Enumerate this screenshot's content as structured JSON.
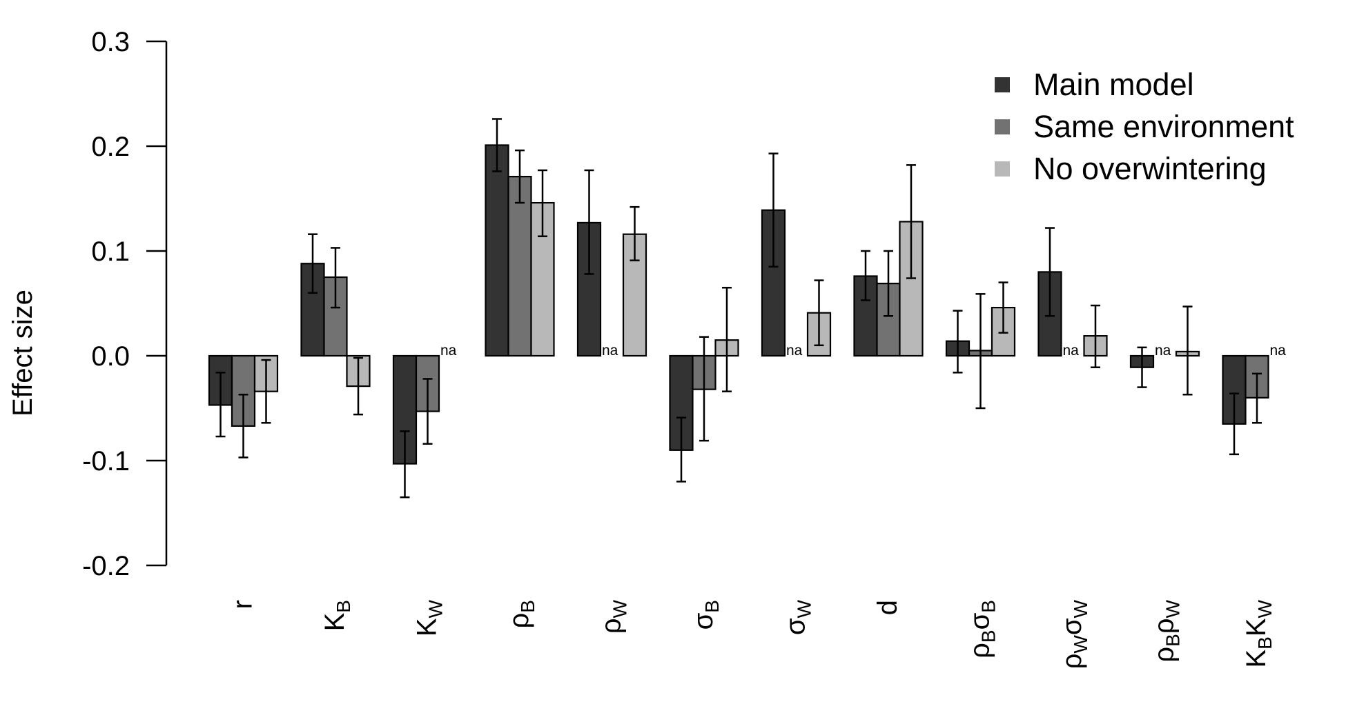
{
  "chart_data": {
    "type": "bar",
    "ylabel": "Effect size",
    "xlabel": "",
    "ylim": [
      -0.2,
      0.3
    ],
    "yticks": [
      "-0.2",
      "-0.1",
      "0.0",
      "0.1",
      "0.2",
      "0.3"
    ],
    "legend_position": "top-right",
    "na_label": "na",
    "categories": [
      {
        "parts": [
          {
            "t": "r"
          }
        ]
      },
      {
        "parts": [
          {
            "t": "K"
          },
          {
            "t": "B",
            "sub": true
          }
        ]
      },
      {
        "parts": [
          {
            "t": "K"
          },
          {
            "t": "W",
            "sub": true
          }
        ]
      },
      {
        "parts": [
          {
            "t": "ρ"
          },
          {
            "t": "B",
            "sub": true
          }
        ]
      },
      {
        "parts": [
          {
            "t": "ρ"
          },
          {
            "t": "W",
            "sub": true
          }
        ]
      },
      {
        "parts": [
          {
            "t": "σ"
          },
          {
            "t": "B",
            "sub": true
          }
        ]
      },
      {
        "parts": [
          {
            "t": "σ"
          },
          {
            "t": "W",
            "sub": true
          }
        ]
      },
      {
        "parts": [
          {
            "t": "d"
          }
        ]
      },
      {
        "parts": [
          {
            "t": "ρ"
          },
          {
            "t": "B",
            "sub": true
          },
          {
            "t": "σ"
          },
          {
            "t": "B",
            "sub": true
          }
        ]
      },
      {
        "parts": [
          {
            "t": "ρ"
          },
          {
            "t": "W",
            "sub": true
          },
          {
            "t": "σ"
          },
          {
            "t": "W",
            "sub": true
          }
        ]
      },
      {
        "parts": [
          {
            "t": "ρ"
          },
          {
            "t": "B",
            "sub": true
          },
          {
            "t": "ρ"
          },
          {
            "t": "W",
            "sub": true
          }
        ]
      },
      {
        "parts": [
          {
            "t": "K"
          },
          {
            "t": "B",
            "sub": true
          },
          {
            "t": "K"
          },
          {
            "t": "W",
            "sub": true
          }
        ]
      }
    ],
    "series": [
      {
        "name": "Main model",
        "color": "#333333",
        "values": [
          -0.047,
          0.088,
          -0.103,
          0.201,
          0.127,
          -0.09,
          0.139,
          0.076,
          0.014,
          0.08,
          -0.011,
          -0.065
        ],
        "lower": [
          -0.077,
          0.06,
          -0.135,
          0.176,
          0.078,
          -0.12,
          0.085,
          0.053,
          -0.016,
          0.038,
          -0.03,
          -0.094
        ],
        "upper": [
          -0.016,
          0.116,
          -0.072,
          0.226,
          0.177,
          -0.059,
          0.193,
          0.1,
          0.043,
          0.122,
          0.008,
          -0.036
        ]
      },
      {
        "name": "Same environment",
        "color": "#727272",
        "values": [
          -0.067,
          0.075,
          -0.053,
          0.171,
          null,
          -0.032,
          null,
          0.069,
          0.005,
          null,
          null,
          -0.04
        ],
        "lower": [
          -0.097,
          0.046,
          -0.084,
          0.146,
          null,
          -0.081,
          null,
          0.038,
          -0.05,
          null,
          null,
          -0.064
        ],
        "upper": [
          -0.037,
          0.103,
          -0.022,
          0.196,
          null,
          0.018,
          null,
          0.1,
          0.059,
          null,
          null,
          -0.017
        ]
      },
      {
        "name": "No overwintering",
        "color": "#b8b8b8",
        "values": [
          -0.034,
          -0.029,
          null,
          0.146,
          0.116,
          0.015,
          0.041,
          0.128,
          0.046,
          0.019,
          0.004,
          null
        ],
        "lower": [
          -0.064,
          -0.056,
          null,
          0.114,
          0.091,
          -0.034,
          0.01,
          0.074,
          0.022,
          -0.011,
          -0.037,
          null
        ],
        "upper": [
          -0.004,
          -0.002,
          null,
          0.177,
          0.142,
          0.065,
          0.072,
          0.182,
          0.07,
          0.048,
          0.047,
          null
        ]
      }
    ]
  }
}
